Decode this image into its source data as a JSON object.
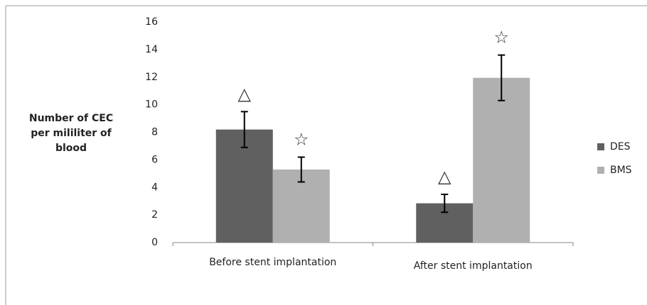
{
  "chart_data": {
    "type": "bar",
    "y_label": [
      "Number of CEC",
      "per mililiter of",
      "blood"
    ],
    "categories": [
      "Before stent implantation",
      "After stent implantation"
    ],
    "series": [
      {
        "name": "DES",
        "color": "#606060",
        "values": [
          8.2,
          2.85
        ],
        "errors": [
          1.3,
          0.65
        ],
        "symbol": "△"
      },
      {
        "name": "BMS",
        "color": "#b0b0b0",
        "values": [
          5.3,
          11.95
        ],
        "errors": [
          0.9,
          1.65
        ],
        "symbol": "☆"
      }
    ],
    "ylim": [
      0,
      16
    ],
    "yticks": [
      0,
      2,
      4,
      6,
      8,
      10,
      12,
      14,
      16
    ],
    "legend": "right"
  }
}
